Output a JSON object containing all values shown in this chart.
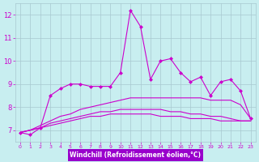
{
  "xlabel": "Windchill (Refroidissement éolien,°C)",
  "x": [
    0,
    1,
    2,
    3,
    4,
    5,
    6,
    7,
    8,
    9,
    10,
    11,
    12,
    13,
    14,
    15,
    16,
    17,
    18,
    19,
    20,
    21,
    22,
    23
  ],
  "line_jagged": [
    6.9,
    6.8,
    7.1,
    8.5,
    8.8,
    9.0,
    9.0,
    8.9,
    8.9,
    8.9,
    9.5,
    12.2,
    11.5,
    9.2,
    10.0,
    10.1,
    9.5,
    9.1,
    9.3,
    8.5,
    9.1,
    9.2,
    8.7,
    7.5
  ],
  "line_smooth1": [
    6.9,
    7.0,
    7.2,
    7.4,
    7.6,
    7.7,
    7.9,
    8.0,
    8.1,
    8.2,
    8.3,
    8.4,
    8.4,
    8.4,
    8.4,
    8.4,
    8.4,
    8.4,
    8.4,
    8.3,
    8.3,
    8.3,
    8.1,
    7.5
  ],
  "line_smooth2": [
    6.9,
    7.0,
    7.1,
    7.3,
    7.4,
    7.5,
    7.6,
    7.7,
    7.8,
    7.8,
    7.9,
    7.9,
    7.9,
    7.9,
    7.9,
    7.8,
    7.8,
    7.7,
    7.7,
    7.6,
    7.6,
    7.5,
    7.4,
    7.4
  ],
  "line_smooth3": [
    6.9,
    7.0,
    7.1,
    7.2,
    7.3,
    7.4,
    7.5,
    7.6,
    7.6,
    7.7,
    7.7,
    7.7,
    7.7,
    7.7,
    7.6,
    7.6,
    7.6,
    7.5,
    7.5,
    7.5,
    7.4,
    7.4,
    7.4,
    7.4
  ],
  "line_color": "#CC00CC",
  "bg_color": "#C8EEF0",
  "grid_color": "#A8C8D0",
  "xlabel_bg": "#9900CC",
  "ylim": [
    6.5,
    12.5
  ],
  "xlim": [
    -0.5,
    23.5
  ],
  "yticks": [
    7,
    8,
    9,
    10,
    11,
    12
  ],
  "xticks": [
    0,
    1,
    2,
    3,
    4,
    5,
    6,
    7,
    8,
    9,
    10,
    11,
    12,
    13,
    14,
    15,
    16,
    17,
    18,
    19,
    20,
    21,
    22,
    23
  ],
  "marker": "D",
  "markersize": 2.5,
  "linewidth": 0.8
}
